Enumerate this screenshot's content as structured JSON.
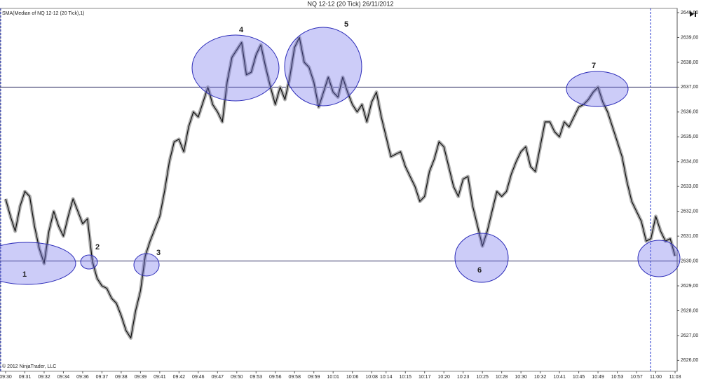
{
  "title": "NQ 12-12 (20 Tick)  26/11/2012",
  "indicator_label": "SMA(Median of NQ 12-12 (20 Tick),1)",
  "copyright": "© 2012 NinjaTrader, LLC",
  "chart_data": {
    "type": "line",
    "categories": [
      "09:30",
      null,
      null,
      null,
      "09:31",
      null,
      null,
      null,
      "09:32",
      null,
      null,
      null,
      "09:34",
      null,
      null,
      null,
      "09:36",
      null,
      null,
      null,
      "09:37",
      null,
      null,
      null,
      "09:38",
      null,
      null,
      null,
      "09:39",
      null,
      null,
      null,
      "09:41",
      null,
      null,
      null,
      "09:42",
      null,
      null,
      null,
      "09:46",
      null,
      null,
      null,
      "09:47",
      null,
      null,
      null,
      "09:50",
      null,
      null,
      null,
      "09:53",
      null,
      null,
      null,
      "09:56",
      null,
      null,
      null,
      "09:58",
      null,
      null,
      null,
      "09:59",
      null,
      null,
      null,
      "10:01",
      null,
      null,
      null,
      "10:06",
      null,
      null,
      null,
      "10:08",
      null,
      null,
      "10:14",
      null,
      null,
      null,
      "10:15",
      null,
      null,
      null,
      "10:17",
      null,
      null,
      null,
      "10:20",
      null,
      null,
      null,
      "10:23",
      null,
      null,
      null,
      "10:25",
      null,
      null,
      null,
      "10:28",
      null,
      null,
      null,
      "10:30",
      null,
      null,
      null,
      "10:32",
      null,
      null,
      null,
      "10:41",
      null,
      null,
      null,
      "10:45",
      null,
      null,
      null,
      "10:49",
      null,
      null,
      null,
      "10:53",
      null,
      null,
      null,
      "10:57",
      null,
      null,
      null,
      "11:00",
      null,
      null,
      null,
      "11:03"
    ],
    "series": [
      {
        "color": "#111111",
        "values": [
          2632.5,
          2631.8,
          2631.2,
          2632.2,
          2632.8,
          2632.6,
          2631.4,
          2630.5,
          2629.9,
          2631.2,
          2632.0,
          2631.4,
          2631.0,
          2631.8,
          2632.5,
          2632.0,
          2631.5,
          2631.7,
          2630.0,
          2629.3,
          2629.0,
          2628.9,
          2628.5,
          2628.3,
          2627.8,
          2627.2,
          2626.9,
          2628.0,
          2628.8,
          2630.2,
          2630.8,
          2631.3,
          2631.8,
          2632.8,
          2634.0,
          2634.8,
          2634.9,
          2634.4,
          2635.4,
          2636.0,
          2635.8,
          2636.4,
          2637.0,
          2636.3,
          2636.0,
          2635.6,
          2637.2,
          2638.2,
          2638.5,
          2638.8,
          2637.5,
          2637.6,
          2638.3,
          2638.7,
          2637.8,
          2637.0,
          2636.3,
          2637.0,
          2636.5,
          2637.4,
          2638.6,
          2639.0,
          2638.0,
          2637.8,
          2637.2,
          2636.2,
          2636.8,
          2637.4,
          2636.8,
          2636.6,
          2637.4,
          2636.8,
          2636.3,
          2636.0,
          2636.3,
          2635.6,
          2636.4,
          2636.8,
          2635.8,
          2635.0,
          2634.2,
          2634.3,
          2634.4,
          2633.8,
          2633.4,
          2633.0,
          2632.4,
          2632.6,
          2633.6,
          2634.1,
          2634.8,
          2634.6,
          2633.8,
          2633.0,
          2632.6,
          2633.3,
          2633.4,
          2632.2,
          2631.4,
          2630.6,
          2631.2,
          2632.0,
          2632.8,
          2632.6,
          2632.8,
          2633.5,
          2634.0,
          2634.4,
          2634.6,
          2633.8,
          2633.6,
          2634.6,
          2635.6,
          2635.6,
          2635.2,
          2635.0,
          2635.6,
          2635.4,
          2635.8,
          2636.2,
          2636.3,
          2636.5,
          2636.8,
          2637.0,
          2636.4,
          2636.0,
          2635.4,
          2634.8,
          2634.2,
          2633.2,
          2632.4,
          2632.0,
          2631.6,
          2630.8,
          2630.9,
          2631.8,
          2631.2,
          2630.8,
          2630.9,
          2630.2
        ]
      }
    ],
    "ylim": [
      2625.56,
      2640.17
    ],
    "yticks": [
      {
        "value": 2626,
        "label": "2626,00"
      },
      {
        "value": 2627,
        "label": "2627,00"
      },
      {
        "value": 2628,
        "label": "2628,00"
      },
      {
        "value": 2629,
        "label": "2629,00"
      },
      {
        "value": 2630,
        "label": "2630,00"
      },
      {
        "value": 2631,
        "label": "2631,00"
      },
      {
        "value": 2632,
        "label": "2632,00"
      },
      {
        "value": 2633,
        "label": "2633,00"
      },
      {
        "value": 2634,
        "label": "2634,00"
      },
      {
        "value": 2635,
        "label": "2635,00"
      },
      {
        "value": 2636,
        "label": "2636,00"
      },
      {
        "value": 2637,
        "label": "2637,00"
      },
      {
        "value": 2638,
        "label": "2638,00"
      },
      {
        "value": 2639,
        "label": "2639,00"
      },
      {
        "value": 2640,
        "label": "2640,00"
      }
    ],
    "hlines": [
      2637,
      2630
    ],
    "annotations": [
      "1",
      "2",
      "3",
      "4",
      "5",
      "6",
      "7"
    ]
  }
}
